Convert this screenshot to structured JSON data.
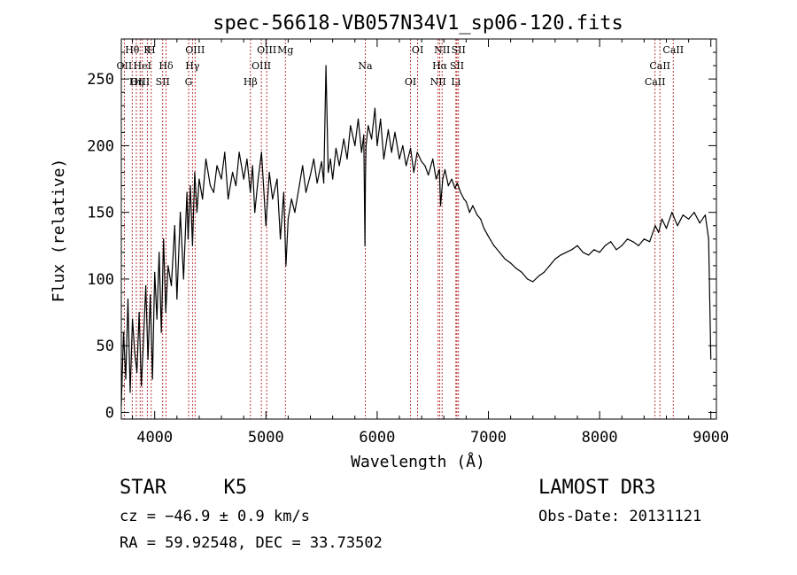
{
  "chart_data": {
    "type": "line",
    "title": "spec-56618-VB057N34V1_sp06-120.fits",
    "xlabel": "Wavelength (Å)",
    "ylabel": "Flux (relative)",
    "xlim": [
      3700,
      9050
    ],
    "ylim": [
      -5,
      280
    ],
    "xticks": [
      4000,
      5000,
      6000,
      7000,
      8000,
      9000
    ],
    "yticks": [
      0,
      50,
      100,
      150,
      200,
      250
    ],
    "series": [
      {
        "name": "flux",
        "x": [
          3700,
          3720,
          3740,
          3760,
          3780,
          3800,
          3820,
          3840,
          3860,
          3880,
          3900,
          3920,
          3940,
          3960,
          3980,
          4000,
          4020,
          4040,
          4060,
          4080,
          4100,
          4120,
          4150,
          4180,
          4200,
          4230,
          4260,
          4290,
          4300,
          4320,
          4340,
          4360,
          4380,
          4400,
          4430,
          4460,
          4500,
          4530,
          4560,
          4600,
          4630,
          4660,
          4700,
          4730,
          4760,
          4800,
          4830,
          4860,
          4880,
          4900,
          4930,
          4960,
          5000,
          5030,
          5060,
          5100,
          5130,
          5160,
          5180,
          5200,
          5230,
          5260,
          5300,
          5330,
          5360,
          5400,
          5430,
          5460,
          5500,
          5520,
          5540,
          5560,
          5580,
          5600,
          5630,
          5660,
          5700,
          5730,
          5760,
          5800,
          5830,
          5860,
          5880,
          5890,
          5895,
          5900,
          5920,
          5950,
          5980,
          6000,
          6030,
          6060,
          6100,
          6130,
          6160,
          6200,
          6230,
          6260,
          6300,
          6330,
          6360,
          6400,
          6430,
          6460,
          6500,
          6530,
          6560,
          6570,
          6590,
          6610,
          6640,
          6670,
          6700,
          6720,
          6750,
          6780,
          6800,
          6830,
          6860,
          6900,
          6930,
          6960,
          7000,
          7050,
          7100,
          7150,
          7200,
          7250,
          7300,
          7350,
          7400,
          7450,
          7500,
          7550,
          7600,
          7650,
          7700,
          7750,
          7800,
          7850,
          7900,
          7950,
          8000,
          8050,
          8100,
          8150,
          8200,
          8250,
          8300,
          8350,
          8400,
          8450,
          8500,
          8530,
          8560,
          8600,
          8650,
          8700,
          8750,
          8800,
          8850,
          8900,
          8950,
          8980,
          9000
        ],
        "values": [
          5,
          60,
          25,
          85,
          15,
          70,
          45,
          30,
          75,
          20,
          55,
          95,
          40,
          88,
          25,
          105,
          70,
          120,
          60,
          130,
          75,
          110,
          95,
          140,
          85,
          150,
          100,
          165,
          130,
          170,
          125,
          180,
          150,
          175,
          160,
          190,
          170,
          165,
          185,
          175,
          195,
          160,
          180,
          170,
          195,
          175,
          190,
          165,
          185,
          150,
          175,
          195,
          140,
          180,
          160,
          175,
          130,
          165,
          110,
          145,
          160,
          150,
          170,
          185,
          165,
          178,
          190,
          172,
          188,
          172,
          260,
          180,
          190,
          175,
          198,
          185,
          205,
          190,
          215,
          200,
          220,
          195,
          208,
          125,
          178,
          200,
          215,
          205,
          228,
          200,
          220,
          190,
          212,
          195,
          210,
          190,
          200,
          185,
          198,
          180,
          195,
          188,
          185,
          178,
          190,
          175,
          182,
          155,
          175,
          182,
          170,
          175,
          168,
          172,
          165,
          160,
          158,
          150,
          155,
          148,
          145,
          138,
          132,
          125,
          120,
          115,
          112,
          108,
          105,
          100,
          98,
          102,
          105,
          110,
          115,
          118,
          120,
          122,
          125,
          120,
          118,
          122,
          120,
          125,
          128,
          122,
          125,
          130,
          128,
          125,
          130,
          128,
          140,
          135,
          145,
          138,
          150,
          140,
          148,
          145,
          150,
          142,
          148,
          130,
          40
        ]
      }
    ],
    "annotations": {
      "spectral_lines": [
        {
          "label": "Hθ",
          "wl": 3798
        },
        {
          "label": "OII",
          "wl": 3727
        },
        {
          "label": "OIII",
          "wl": 3869
        },
        {
          "label": "K",
          "wl": 3934
        },
        {
          "label": "HeI",
          "wl": 3889
        },
        {
          "label": "Hη",
          "wl": 3835
        },
        {
          "label": "H",
          "wl": 3969
        },
        {
          "label": "Hδ",
          "wl": 4102
        },
        {
          "label": "SII",
          "wl": 4072
        },
        {
          "label": "OIII",
          "wl": 4363
        },
        {
          "label": "Hγ",
          "wl": 4340
        },
        {
          "label": "G",
          "wl": 4305
        },
        {
          "label": "OIII",
          "wl": 5007
        },
        {
          "label": "OIII",
          "wl": 4959
        },
        {
          "label": "Hβ",
          "wl": 4861
        },
        {
          "label": "Mg",
          "wl": 5175
        },
        {
          "label": "Na",
          "wl": 5893
        },
        {
          "label": "OI",
          "wl": 6300
        },
        {
          "label": "OI",
          "wl": 6364
        },
        {
          "label": "Hα",
          "wl": 6563
        },
        {
          "label": "NII",
          "wl": 6548
        },
        {
          "label": "NII",
          "wl": 6584
        },
        {
          "label": "SII",
          "wl": 6717
        },
        {
          "label": "Li",
          "wl": 6708
        },
        {
          "label": "SII",
          "wl": 6731
        },
        {
          "label": "CaII",
          "wl": 8542
        },
        {
          "label": "CaII",
          "wl": 8498
        },
        {
          "label": "CaII",
          "wl": 8662
        }
      ]
    }
  },
  "info": {
    "class": "STAR",
    "subclass": "K5",
    "survey": "LAMOST DR3",
    "cz_text": "cz = −46.9 ± 0.9 km/s",
    "obs_date": "Obs-Date: 20131121",
    "radec_text": "RA =  59.92548, DEC =  33.73502"
  },
  "colors": {
    "line": "#000000",
    "marker": "#b22222",
    "text": "#000000"
  }
}
